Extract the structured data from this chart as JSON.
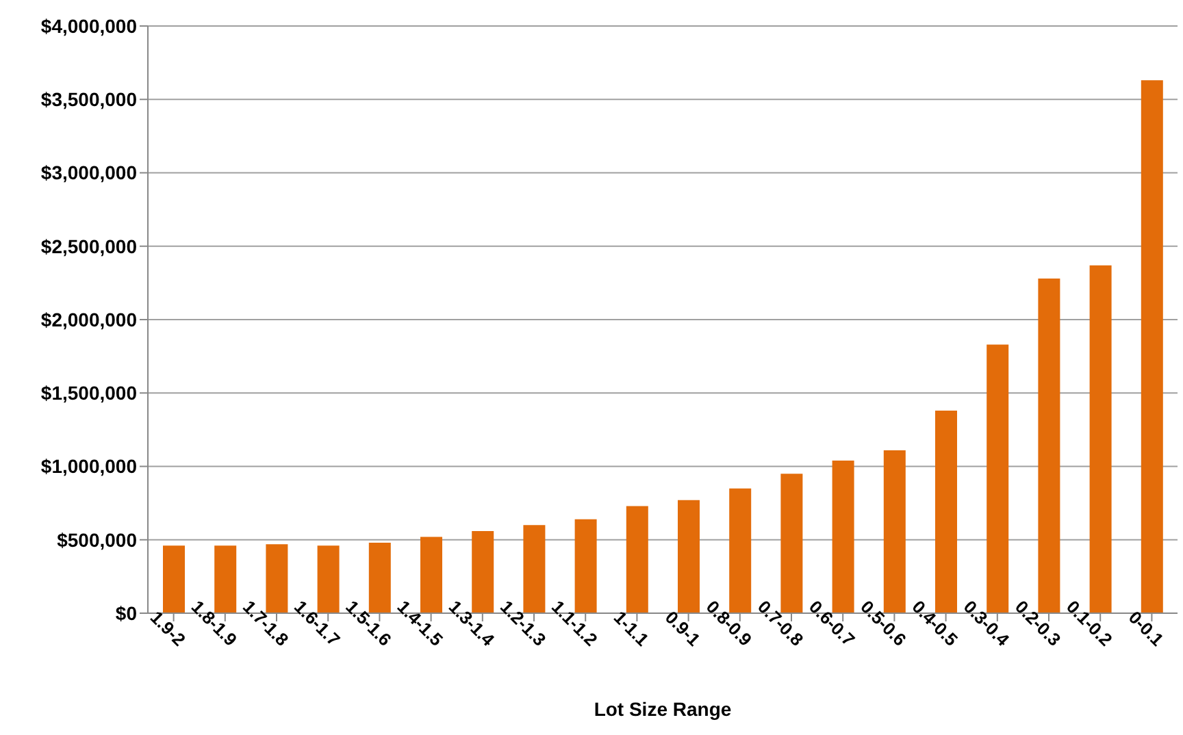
{
  "chart_data": {
    "type": "bar",
    "xlabel": "Lot Size Range",
    "categories": [
      "1.9-2",
      "1.8-1.9",
      "1.7-1.8",
      "1.6-1.7",
      "1.5-1.6",
      "1.4-1.5",
      "1.3-1.4",
      "1.2-1.3",
      "1.1-1.2",
      "1-1.1",
      "0.9-1",
      "0.8-0.9",
      "0.7-0.8",
      "0.6-0.7",
      "0.5-0.6",
      "0.4-0.5",
      "0.3-0.4",
      "0.2-0.3",
      "0.1-0.2",
      "0-0.1"
    ],
    "values": [
      460000,
      460000,
      470000,
      460000,
      480000,
      520000,
      560000,
      600000,
      640000,
      730000,
      770000,
      850000,
      950000,
      1040000,
      1110000,
      1380000,
      1830000,
      2280000,
      2370000,
      3630000
    ],
    "color": "#e36c0a",
    "ylim": [
      0,
      4000000
    ],
    "yticks": [
      {
        "value": 0,
        "label": "$0"
      },
      {
        "value": 500000,
        "label": "$500,000"
      },
      {
        "value": 1000000,
        "label": "$1,000,000"
      },
      {
        "value": 1500000,
        "label": "$1,500,000"
      },
      {
        "value": 2000000,
        "label": "$2,000,000"
      },
      {
        "value": 2500000,
        "label": "$2,500,000"
      },
      {
        "value": 3000000,
        "label": "$3,000,000"
      },
      {
        "value": 3500000,
        "label": "$3,500,000"
      },
      {
        "value": 4000000,
        "label": "$4,000,000"
      }
    ],
    "grid": "y"
  }
}
